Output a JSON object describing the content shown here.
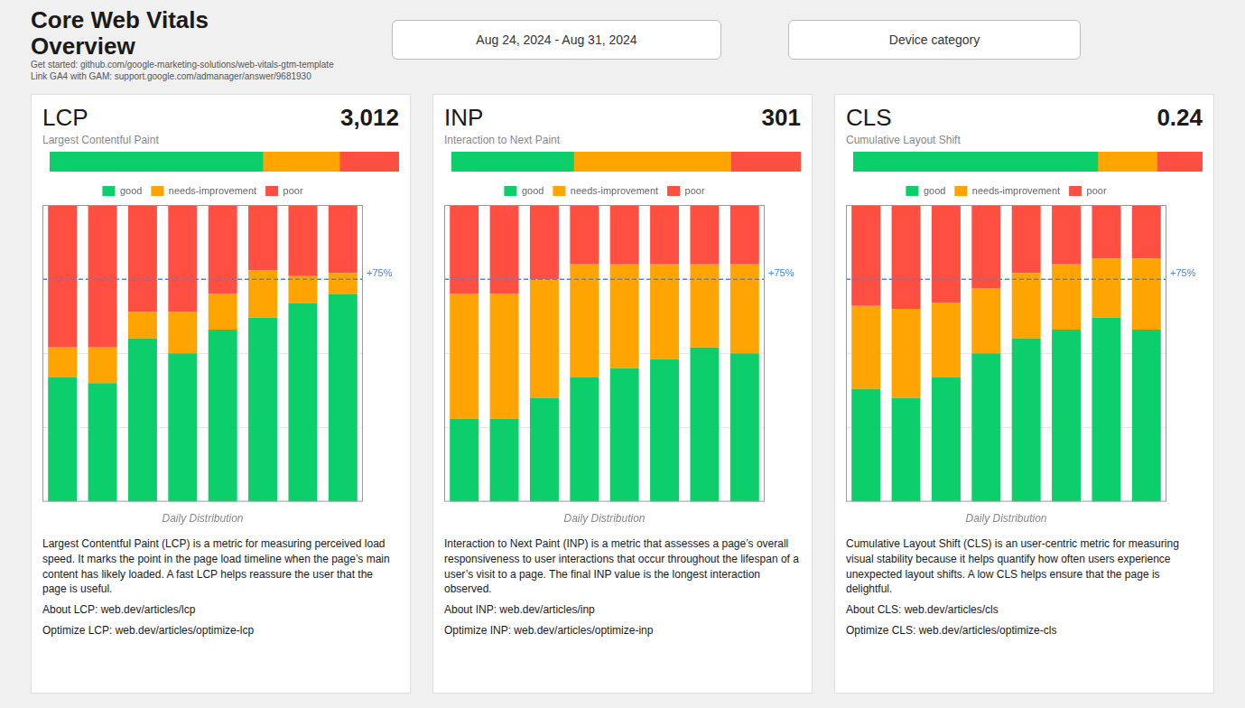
{
  "title": [
    "Core Web Vitals",
    "Overview"
  ],
  "subtitle": [
    "Get started: github.com/google-marketing-solutions/web-vitals-gtm-template",
    "Link GA4 with GAM: support.google.com/admanager/answer/9681930"
  ],
  "annotations": [
    {
      "text": "Aug 24, 2024 - Aug 31, 2024"
    },
    {
      "text": "Device category"
    }
  ],
  "chart_data": [
    {
      "type": "bar",
      "title": "LCP",
      "subtitle": "Largest Contentful Paint",
      "annotations": [
        {
          "text": "3,012"
        }
      ],
      "orientation": "horizontal",
      "stacked": true,
      "tick_labels": false,
      "grid": false,
      "categories": [
        null
      ],
      "series": [
        {
          "name": "good",
          "color": "#0CCE6B",
          "values": [
            0.61
          ]
        },
        {
          "name": "needs-improvement",
          "color": "#FFA400",
          "values": [
            0.22
          ]
        },
        {
          "name": "poor",
          "color": "#FF4E42",
          "values": [
            0.17
          ]
        }
      ],
      "xlim": [
        0,
        1
      ]
    },
    {
      "type": "bar",
      "xlabel": "Daily Distribution",
      "stacked": true,
      "tick_labels": false,
      "grid": true,
      "legend": "top",
      "categories": [
        null,
        null,
        null,
        null,
        null,
        null,
        null,
        null
      ],
      "series": [
        {
          "name": "good",
          "color": "#0CCE6B",
          "values": [
            42,
            40,
            55,
            50,
            58,
            62,
            67,
            70
          ]
        },
        {
          "name": "needs-improvement",
          "color": "#FFA400",
          "values": [
            10,
            12,
            9,
            14,
            12,
            16,
            9,
            7
          ]
        },
        {
          "name": "poor",
          "color": "#FF4E42",
          "values": [
            48,
            48,
            36,
            36,
            30,
            22,
            24,
            23
          ]
        }
      ],
      "ylim": [
        0,
        100
      ],
      "yticks": [
        25,
        50,
        75
      ],
      "annotations": [
        {
          "text": "+75%",
          "y": 75,
          "color": "#4285F4"
        },
        {
          "text": "Largest Contentful Paint (LCP) is a metric for measuring perceived load speed. It marks the point in the page load timeline when the page’s main content has likely loaded. A fast LCP helps reassure the user that the page is useful."
        },
        {
          "text": "About LCP: web.dev/articles/lcp"
        },
        {
          "text": "Optimize LCP: web.dev/articles/optimize-lcp"
        }
      ]
    },
    {
      "type": "bar",
      "title": "INP",
      "subtitle": "Interaction to Next Paint",
      "annotations": [
        {
          "text": "301"
        }
      ],
      "orientation": "horizontal",
      "stacked": true,
      "tick_labels": false,
      "grid": false,
      "categories": [
        null
      ],
      "series": [
        {
          "name": "good",
          "color": "#0CCE6B",
          "values": [
            0.35
          ]
        },
        {
          "name": "needs-improvement",
          "color": "#FFA400",
          "values": [
            0.45
          ]
        },
        {
          "name": "poor",
          "color": "#FF4E42",
          "values": [
            0.2
          ]
        }
      ],
      "xlim": [
        0,
        1
      ]
    },
    {
      "type": "bar",
      "xlabel": "Daily Distribution",
      "stacked": true,
      "tick_labels": false,
      "grid": true,
      "legend": "top",
      "categories": [
        null,
        null,
        null,
        null,
        null,
        null,
        null,
        null
      ],
      "series": [
        {
          "name": "good",
          "color": "#0CCE6B",
          "values": [
            28,
            28,
            35,
            42,
            45,
            48,
            52,
            50
          ]
        },
        {
          "name": "needs-improvement",
          "color": "#FFA400",
          "values": [
            42,
            42,
            40,
            38,
            35,
            32,
            28,
            30
          ]
        },
        {
          "name": "poor",
          "color": "#FF4E42",
          "values": [
            30,
            30,
            25,
            20,
            20,
            20,
            20,
            20
          ]
        }
      ],
      "ylim": [
        0,
        100
      ],
      "yticks": [
        25,
        50,
        75
      ],
      "annotations": [
        {
          "text": "+75%",
          "y": 75,
          "color": "#4285F4"
        },
        {
          "text": "Interaction to Next Paint (INP) is a metric that assesses a page’s overall responsiveness to user interactions that occur throughout the lifespan of a user’s visit to a page. The final INP value is the longest interaction observed."
        },
        {
          "text": "About INP: web.dev/articles/inp"
        },
        {
          "text": "Optimize INP: web.dev/articles/optimize-inp"
        }
      ]
    },
    {
      "type": "bar",
      "title": "CLS",
      "subtitle": "Cumulative Layout Shift",
      "annotations": [
        {
          "text": "0.24"
        }
      ],
      "orientation": "horizontal",
      "stacked": true,
      "tick_labels": false,
      "grid": false,
      "categories": [
        null
      ],
      "series": [
        {
          "name": "good",
          "color": "#0CCE6B",
          "values": [
            0.7
          ]
        },
        {
          "name": "needs-improvement",
          "color": "#FFA400",
          "values": [
            0.17
          ]
        },
        {
          "name": "poor",
          "color": "#FF4E42",
          "values": [
            0.13
          ]
        }
      ],
      "xlim": [
        0,
        1
      ]
    },
    {
      "type": "bar",
      "xlabel": "Daily Distribution",
      "stacked": true,
      "tick_labels": false,
      "grid": true,
      "legend": "top",
      "categories": [
        null,
        null,
        null,
        null,
        null,
        null,
        null,
        null
      ],
      "series": [
        {
          "name": "good",
          "color": "#0CCE6B",
          "values": [
            38,
            35,
            42,
            50,
            55,
            58,
            62,
            58
          ]
        },
        {
          "name": "needs-improvement",
          "color": "#FFA400",
          "values": [
            28,
            30,
            25,
            22,
            22,
            22,
            20,
            24
          ]
        },
        {
          "name": "poor",
          "color": "#FF4E42",
          "values": [
            34,
            35,
            33,
            28,
            23,
            20,
            18,
            18
          ]
        }
      ],
      "ylim": [
        0,
        100
      ],
      "yticks": [
        25,
        50,
        75
      ],
      "annotations": [
        {
          "text": "+75%",
          "y": 75,
          "color": "#4285F4"
        },
        {
          "text": "Cumulative Layout Shift (CLS) is an user-centric metric for measuring visual stability because it helps quantify how often users experience unexpected layout shifts. A low CLS helps ensure that the page is delightful."
        },
        {
          "text": "About CLS: web.dev/articles/cls"
        },
        {
          "text": "Optimize CLS: web.dev/articles/optimize-cls"
        }
      ]
    }
  ]
}
